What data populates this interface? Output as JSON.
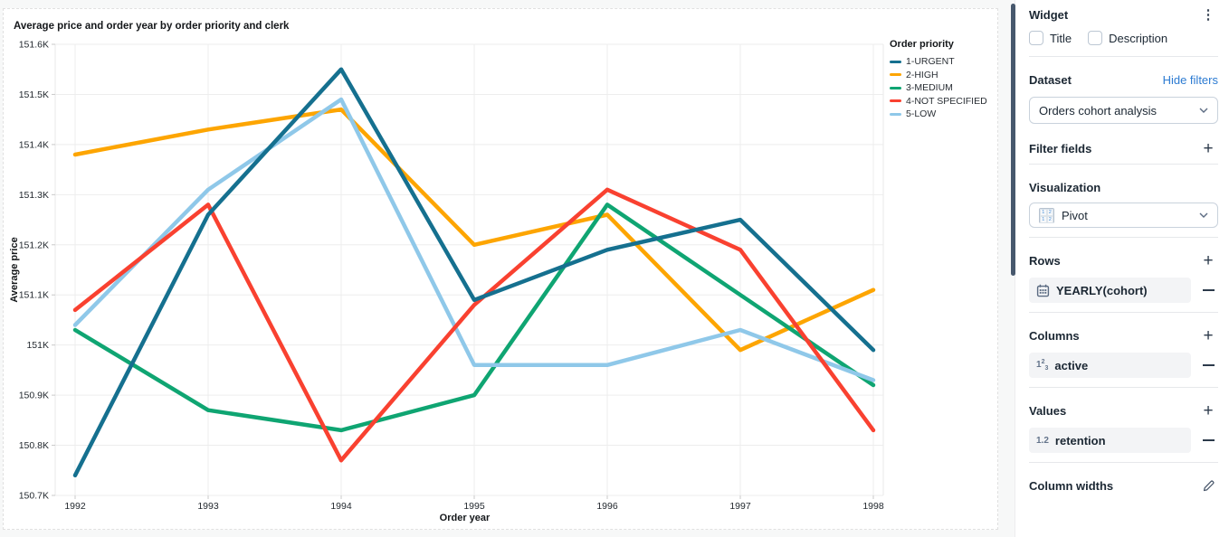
{
  "chart_data": {
    "type": "line",
    "title": "Average price and order year by order priority and clerk",
    "xlabel": "Order year",
    "ylabel": "Average price",
    "x": [
      "1992",
      "1993",
      "1994",
      "1995",
      "1996",
      "1997",
      "1998"
    ],
    "series": [
      {
        "name": "1-URGENT",
        "color": "#15708f",
        "values": [
          150.74,
          151.26,
          151.55,
          151.09,
          151.19,
          151.25,
          150.99
        ]
      },
      {
        "name": "2-HIGH",
        "color": "#fda501",
        "values": [
          151.38,
          151.43,
          151.47,
          151.2,
          151.26,
          150.99,
          151.11
        ]
      },
      {
        "name": "3-MEDIUM",
        "color": "#0fa572",
        "values": [
          151.03,
          150.87,
          150.83,
          150.9,
          151.28,
          151.1,
          150.92
        ]
      },
      {
        "name": "4-NOT SPECIFIED",
        "color": "#f94130",
        "values": [
          151.07,
          151.28,
          150.77,
          151.08,
          151.31,
          151.19,
          150.83
        ]
      },
      {
        "name": "5-LOW",
        "color": "#8fc8e9",
        "values": [
          151.04,
          151.31,
          151.49,
          150.96,
          150.96,
          151.03,
          150.93
        ]
      }
    ],
    "ylim": [
      150.7,
      151.6
    ],
    "ytick_step": 0.1,
    "yticks": [
      "151.6K",
      "151.5K",
      "151.4K",
      "151.3K",
      "151.2K",
      "151.1K",
      "151K",
      "150.9K",
      "150.8K",
      "150.7K"
    ],
    "legend_title": "Order priority",
    "legend_position": "right",
    "grid": true
  },
  "sidebar": {
    "widget": {
      "title": "Widget",
      "checkboxes": [
        {
          "label": "Title",
          "checked": false
        },
        {
          "label": "Description",
          "checked": false
        }
      ]
    },
    "dataset": {
      "label": "Dataset",
      "link_label": "Hide filters",
      "selected": "Orders cohort analysis"
    },
    "filter_fields": {
      "label": "Filter fields"
    },
    "visualization": {
      "label": "Visualization",
      "selected": "Pivot"
    },
    "rows": {
      "label": "Rows",
      "items": [
        {
          "label": "YEARLY(cohort)",
          "icon": "calendar-icon"
        }
      ]
    },
    "columns": {
      "label": "Columns",
      "items": [
        {
          "label": "active",
          "icon": "numeric-123-icon"
        }
      ]
    },
    "values": {
      "label": "Values",
      "items": [
        {
          "label": "retention",
          "icon": "numeric-12-icon"
        }
      ]
    },
    "column_widths": {
      "label": "Column widths"
    }
  },
  "colors": {
    "link_blue": "#2c7bd2",
    "slate_icon": "#51627a",
    "scrollbar": "#47586d",
    "gridline": "#ededed",
    "card_bg": "#ffffff",
    "page_bg": "#f7f8f8"
  }
}
